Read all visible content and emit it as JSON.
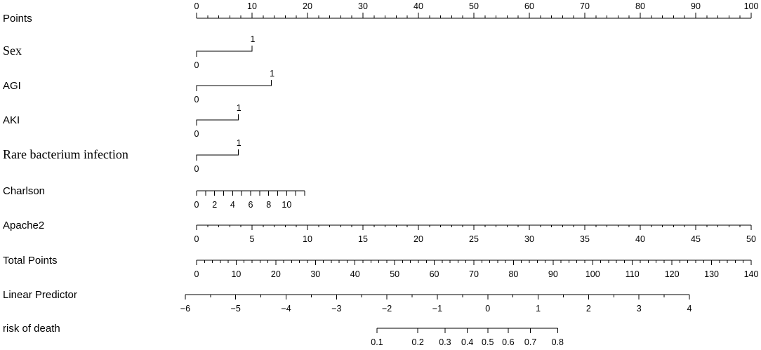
{
  "chart_data": {
    "type": "nomogram",
    "rows": [
      {
        "id": "points",
        "label": "Points",
        "serif": false,
        "scale": "linear",
        "range": [
          0,
          100
        ],
        "major": [
          0,
          10,
          20,
          30,
          40,
          50,
          60,
          70,
          80,
          90,
          100
        ],
        "minor_step": 2,
        "labels_above": true
      },
      {
        "id": "sex",
        "label": "Sex",
        "serif": true,
        "scale": "categorical",
        "levels": [
          {
            "value": "0",
            "points": 0
          },
          {
            "value": "1",
            "points": 10
          }
        ]
      },
      {
        "id": "agi",
        "label": "AGI",
        "serif": false,
        "scale": "categorical",
        "levels": [
          {
            "value": "0",
            "points": 0
          },
          {
            "value": "1",
            "points": 13.5
          }
        ]
      },
      {
        "id": "aki",
        "label": "AKI",
        "serif": false,
        "scale": "categorical",
        "levels": [
          {
            "value": "0",
            "points": 0
          },
          {
            "value": "1",
            "points": 7.5
          }
        ]
      },
      {
        "id": "rare_bacterium",
        "label": "Rare bacterium infection",
        "serif": true,
        "scale": "categorical",
        "levels": [
          {
            "value": "0",
            "points": 0
          },
          {
            "value": "1",
            "points": 7.5
          }
        ]
      },
      {
        "id": "charlson",
        "label": "Charlson",
        "serif": false,
        "scale": "linear",
        "range": [
          0,
          12
        ],
        "points_range": [
          0,
          19.5
        ],
        "major": [
          0,
          2,
          4,
          6,
          8,
          10
        ],
        "tick_step": 1
      },
      {
        "id": "apache2",
        "label": "Apache2",
        "serif": false,
        "scale": "linear",
        "range": [
          0,
          50
        ],
        "points_range": [
          0,
          100
        ],
        "major": [
          0,
          5,
          10,
          15,
          20,
          25,
          30,
          35,
          40,
          45,
          50
        ],
        "minor_step": 1
      },
      {
        "id": "total_points",
        "label": "Total Points",
        "serif": false,
        "scale": "linear",
        "range": [
          0,
          140
        ],
        "major": [
          0,
          10,
          20,
          30,
          40,
          50,
          60,
          70,
          80,
          90,
          100,
          110,
          120,
          130,
          140
        ],
        "minor_step": 2
      },
      {
        "id": "linear_predictor",
        "label": "Linear Predictor",
        "serif": false,
        "scale": "linear",
        "range": [
          -6,
          4
        ],
        "total_points_at_range": [
          -2.85,
          124.4
        ],
        "major": [
          -6,
          -5,
          -4,
          -3,
          -2,
          -1,
          0,
          1,
          2,
          3,
          4
        ],
        "major_text": [
          "−6",
          "−5",
          "−4",
          "−3",
          "−2",
          "−1",
          "0",
          "1",
          "2",
          "3",
          "4"
        ],
        "minor_step": 0.5
      },
      {
        "id": "risk",
        "label": "risk of death",
        "serif": false,
        "scale": "logit",
        "values": [
          0.1,
          0.2,
          0.3,
          0.4,
          0.5,
          0.6,
          0.7,
          0.8
        ],
        "value_text": [
          "0.1",
          "0.2",
          "0.3",
          "0.4",
          "0.5",
          "0.6",
          "0.7",
          "0.8"
        ]
      }
    ]
  }
}
